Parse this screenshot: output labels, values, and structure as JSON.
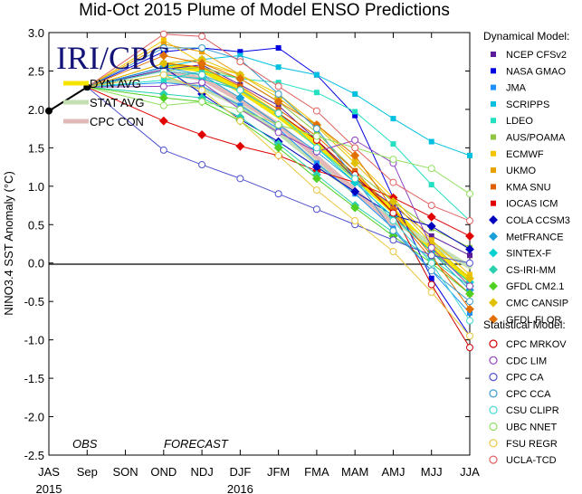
{
  "chart_data": {
    "type": "line",
    "title": "Mid-Oct 2015 Plume of Model ENSO Predictions",
    "ylabel": "NINO3.4 SST Anomaly (°C)",
    "xlabel": "",
    "ylim": [
      -2.5,
      3.0
    ],
    "yticks": [
      "3.0",
      "2.5",
      "2.0",
      "1.5",
      "1.0",
      "0.5",
      "0.0",
      "-0.5",
      "-1.0",
      "-1.5",
      "-2.0",
      "-2.5"
    ],
    "yticks_values": [
      3.0,
      2.5,
      2.0,
      1.5,
      1.0,
      0.5,
      0.0,
      -0.5,
      -1.0,
      -1.5,
      -2.0,
      -2.5
    ],
    "categories": [
      "JAS",
      "Sep",
      "SON",
      "OND",
      "NDJ",
      "DJF",
      "JFM",
      "FMA",
      "MAM",
      "AMJ",
      "MJJ",
      "JJA"
    ],
    "year_labels": [
      {
        "label": "2015",
        "at": "JAS"
      },
      {
        "label": "2016",
        "at": "DJF"
      }
    ],
    "logo": "IRI/CPC",
    "zero_line": true,
    "grid": false,
    "obs_label": "OBS",
    "forecast_label": "FORECAST",
    "observed": {
      "x": [
        "JAS",
        "Sep"
      ],
      "values": [
        1.98,
        2.29
      ],
      "color": "#000000"
    },
    "averages": [
      {
        "name": "DYN AVG",
        "color": "#f5e400",
        "values": [
          null,
          null,
          null,
          2.58,
          2.52,
          2.25,
          1.92,
          1.55,
          1.12,
          0.68,
          0.18,
          -0.22
        ]
      },
      {
        "name": "STAT AVG",
        "color": "#c3dfb4",
        "values": [
          null,
          null,
          null,
          2.4,
          2.28,
          2.05,
          1.7,
          1.3,
          0.92,
          0.55,
          0.25,
          -0.05
        ]
      },
      {
        "name": "CPC CON",
        "color": "#e3b8b8",
        "values": [
          null,
          null,
          null,
          2.48,
          2.4,
          2.12,
          1.8,
          1.38,
          0.95,
          0.5,
          null,
          null
        ]
      }
    ],
    "legend_averages_position": "top-left",
    "dynamical_title": "Dynamical Model:",
    "statistical_title": "Statistical Model:",
    "series": [
      {
        "group": "dynamical",
        "name": "NCEP CFSv2",
        "color": "#5a1a9a",
        "values": [
          null,
          null,
          null,
          2.52,
          2.58,
          2.32,
          2.05,
          1.6,
          1.1,
          0.75,
          0.35,
          0.1
        ]
      },
      {
        "group": "dynamical",
        "name": "NASA GMAO",
        "color": "#0000e0",
        "values": [
          null,
          null,
          null,
          2.75,
          2.8,
          2.75,
          2.8,
          2.45,
          1.92,
          0.85,
          -0.2,
          -0.95
        ]
      },
      {
        "group": "dynamical",
        "name": "JMA",
        "color": "#1e90ff",
        "values": [
          null,
          null,
          null,
          2.35,
          2.3,
          2.05,
          1.75,
          1.3,
          0.9,
          0.45,
          -0.1,
          -0.65
        ]
      },
      {
        "group": "dynamical",
        "name": "SCRIPPS",
        "color": "#00c0e0",
        "values": [
          null,
          null,
          null,
          2.55,
          2.65,
          2.7,
          2.55,
          2.45,
          2.2,
          1.88,
          1.58,
          1.4
        ]
      },
      {
        "group": "dynamical",
        "name": "LDEO",
        "color": "#22e0c0",
        "values": [
          null,
          null,
          null,
          2.38,
          2.5,
          2.4,
          2.35,
          2.22,
          1.97,
          1.55,
          1.02,
          0.55
        ]
      },
      {
        "group": "dynamical",
        "name": "AUS/POAMA",
        "color": "#8ec63f",
        "values": [
          null,
          null,
          null,
          2.5,
          2.55,
          2.4,
          2.1,
          1.7,
          1.2,
          0.8,
          0.45,
          0.2
        ]
      },
      {
        "group": "dynamical",
        "name": "ECMWF",
        "color": "#f5c400",
        "values": [
          null,
          null,
          null,
          2.9,
          2.6,
          2.45,
          2.2,
          1.8,
          1.35,
          0.85,
          0.3,
          -0.15
        ]
      },
      {
        "group": "dynamical",
        "name": "UKMO",
        "color": "#e8a000",
        "values": [
          null,
          null,
          null,
          2.85,
          2.75,
          2.45,
          null,
          null,
          null,
          null,
          null,
          null
        ]
      },
      {
        "group": "dynamical",
        "name": "KMA SNU",
        "color": "#e06000",
        "values": [
          null,
          null,
          null,
          2.6,
          2.55,
          2.3,
          2.0,
          1.65,
          1.2,
          0.65,
          0.05,
          -0.4
        ]
      },
      {
        "group": "dynamical",
        "name": "IOCAS ICM",
        "color": "#e00000",
        "values": [
          null,
          null,
          null,
          1.85,
          1.67,
          1.52,
          1.4,
          1.2,
          1.05,
          0.85,
          0.6,
          0.35
        ]
      },
      {
        "group": "dynamical",
        "name": "COLA CCSM3",
        "color": "#0000c0",
        "values": [
          null,
          null,
          null,
          2.55,
          2.2,
          1.87,
          1.58,
          1.25,
          0.93,
          0.62,
          0.48,
          0.18
        ]
      },
      {
        "group": "dynamical",
        "name": "MetFRANCE",
        "color": "#1aa0d8",
        "values": [
          null,
          null,
          null,
          2.55,
          2.45,
          2.15,
          1.8,
          1.45,
          1.05,
          0.6,
          0.15,
          -0.35
        ]
      },
      {
        "group": "dynamical",
        "name": "SINTEX-F",
        "color": "#00d0d0",
        "values": [
          null,
          null,
          null,
          2.45,
          2.4,
          2.25,
          1.95,
          1.5,
          1.05,
          0.6,
          0.15,
          -0.25
        ]
      },
      {
        "group": "dynamical",
        "name": "CS-IRI-MM",
        "color": "#2ad0b0",
        "values": [
          null,
          null,
          null,
          2.2,
          2.15,
          1.9,
          1.55,
          1.15,
          0.75,
          0.4,
          0.05,
          -0.3
        ]
      },
      {
        "group": "dynamical",
        "name": "GFDL CM2.1",
        "color": "#50d020",
        "values": [
          null,
          null,
          null,
          2.15,
          2.1,
          1.85,
          1.5,
          1.1,
          0.72,
          0.35,
          0.0,
          -0.4
        ]
      },
      {
        "group": "dynamical",
        "name": "CMC CANSIP",
        "color": "#e0c000",
        "values": [
          null,
          null,
          null,
          2.6,
          2.65,
          2.45,
          2.15,
          1.78,
          1.3,
          0.8,
          0.25,
          -0.2
        ]
      },
      {
        "group": "dynamical",
        "name": "GFDL FLOR",
        "color": "#e07000",
        "values": [
          null,
          null,
          null,
          2.7,
          2.6,
          2.4,
          2.1,
          1.8,
          1.4,
          0.7,
          0.1,
          -0.6
        ]
      },
      {
        "group": "statistical",
        "name": "CPC MRKOV",
        "color": "#d00000",
        "values": [
          null,
          null,
          null,
          2.5,
          2.45,
          2.25,
          1.95,
          1.6,
          1.15,
          0.65,
          -0.28,
          -1.1
        ]
      },
      {
        "group": "statistical",
        "name": "CDC LIM",
        "color": "#9040c0",
        "values": [
          null,
          null,
          null,
          2.3,
          2.35,
          2.0,
          1.7,
          1.45,
          1.6,
          1.3,
          0.2,
          -0.3
        ]
      },
      {
        "group": "statistical",
        "name": "CPC CA",
        "color": "#5050d0",
        "values": [
          null,
          null,
          null,
          1.47,
          1.28,
          1.1,
          0.9,
          0.7,
          0.5,
          0.3,
          0.1,
          0.0
        ]
      },
      {
        "group": "statistical",
        "name": "CPC CCA",
        "color": "#3a9ad0",
        "values": [
          null,
          null,
          null,
          2.8,
          2.8,
          2.65,
          2.2,
          1.75,
          1.1,
          0.42,
          -0.1,
          -0.5
        ]
      },
      {
        "group": "statistical",
        "name": "CSU CLIPR",
        "color": "#40d8d0",
        "values": [
          null,
          null,
          null,
          2.5,
          2.45,
          2.25,
          1.95,
          1.5,
          1.1,
          0.55,
          0.0,
          -0.75
        ]
      },
      {
        "group": "statistical",
        "name": "UBC NNET",
        "color": "#90e060",
        "values": [
          null,
          null,
          null,
          2.05,
          2.1,
          2.0,
          1.8,
          1.65,
          1.5,
          1.35,
          1.23,
          0.9
        ]
      },
      {
        "group": "statistical",
        "name": "FSU REGR",
        "color": "#e8c840",
        "values": [
          null,
          null,
          null,
          2.45,
          2.25,
          1.85,
          1.4,
          0.95,
          0.55,
          0.15,
          -0.38,
          -0.95
        ]
      },
      {
        "group": "statistical",
        "name": "UCLA-TCD",
        "color": "#e06060",
        "values": [
          null,
          null,
          null,
          2.98,
          2.95,
          2.62,
          2.3,
          1.98,
          1.5,
          1.05,
          0.75,
          0.55
        ]
      }
    ]
  }
}
